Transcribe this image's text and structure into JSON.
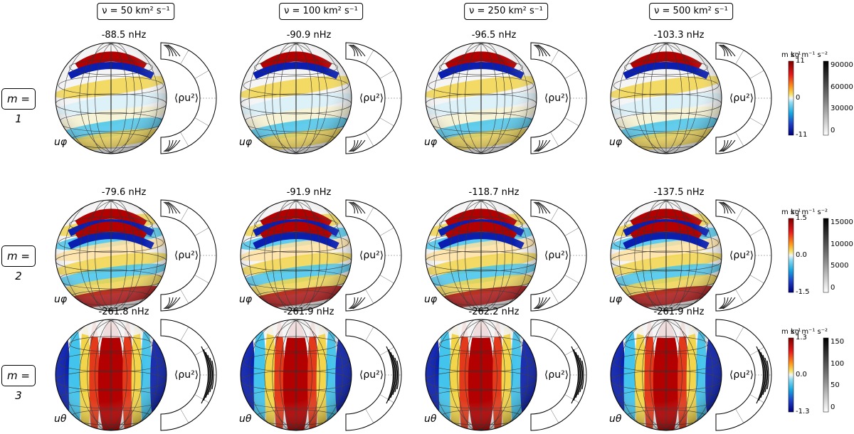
{
  "columns": [
    {
      "label": "ν = 50 km² s⁻¹"
    },
    {
      "label": "ν = 100 km² s⁻¹"
    },
    {
      "label": "ν = 250 km² s⁻¹"
    },
    {
      "label": "ν = 500 km² s⁻¹"
    }
  ],
  "rows": [
    {
      "label": "m = 1",
      "component": "uφ",
      "freqs": [
        "-88.5 nHz",
        "-90.9 nHz",
        "-96.5 nHz",
        "-103.3 nHz"
      ],
      "velocity_colorbar": {
        "unit": "m s⁻¹",
        "ticks": [
          "11",
          "0",
          "-11"
        ]
      },
      "density_colorbar": {
        "unit": "kg m⁻¹ s⁻²",
        "ticks": [
          "90000",
          "60000",
          "30000",
          "0"
        ]
      }
    },
    {
      "label": "m = 2",
      "component": "uφ",
      "freqs": [
        "-79.6 nHz",
        "-91.9 nHz",
        "-118.7 nHz",
        "-137.5 nHz"
      ],
      "velocity_colorbar": {
        "unit": "m s⁻¹",
        "ticks": [
          "1.5",
          "0.0",
          "-1.5"
        ]
      },
      "density_colorbar": {
        "unit": "kg m⁻¹ s⁻²",
        "ticks": [
          "15000",
          "10000",
          "5000",
          "0"
        ]
      }
    },
    {
      "label": "m = 3",
      "component": "uθ",
      "freqs": [
        "-261.8 nHz",
        "-261.9 nHz",
        "-262.2 nHz",
        "-261.9 nHz"
      ],
      "velocity_colorbar": {
        "unit": "m s⁻¹",
        "ticks": [
          "1.3",
          "0.0",
          "-1.3"
        ]
      },
      "density_colorbar": {
        "unit": "kg m⁻¹ s⁻²",
        "ticks": [
          "150",
          "100",
          "50",
          "0"
        ]
      }
    }
  ],
  "meridional_label": "⟨ρu²⟩",
  "colors": {
    "red": "#b30000",
    "blue": "#0a1fb0",
    "cyan": "#43c4ec",
    "yellow": "#f2d54a",
    "white": "#f5f5f5"
  }
}
